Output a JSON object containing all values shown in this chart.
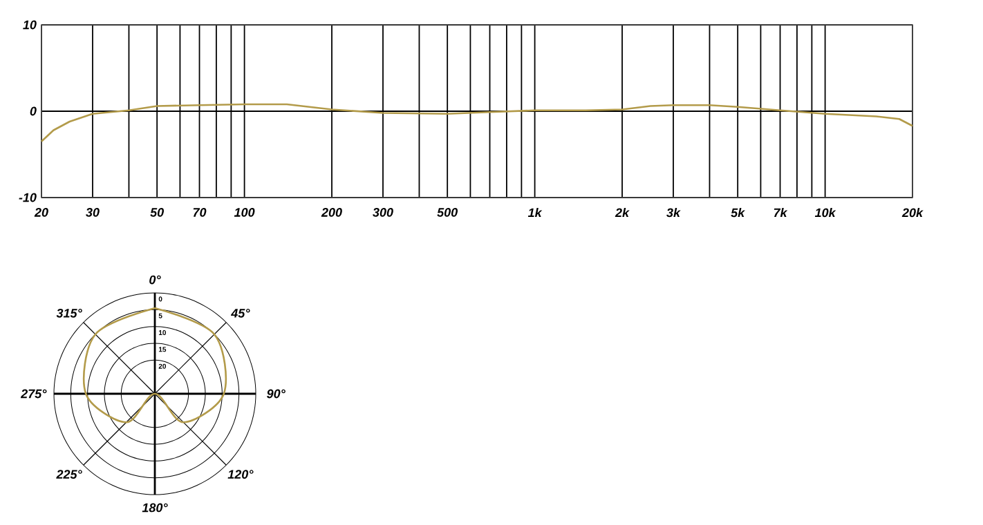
{
  "chart_data": [
    {
      "type": "line",
      "log": "x",
      "grid": true,
      "x": [
        20,
        22,
        25,
        30,
        40,
        50,
        70,
        100,
        140,
        200,
        300,
        500,
        700,
        1000,
        1500,
        2000,
        2500,
        3000,
        4000,
        5000,
        7000,
        10000,
        15000,
        18000,
        20000
      ],
      "series": [
        {
          "color": "#b39b4a",
          "values": [
            -3.5,
            -2.2,
            -1.2,
            -0.3,
            0.1,
            0.6,
            0.7,
            0.8,
            0.8,
            0.2,
            -0.2,
            -0.3,
            -0.1,
            0.1,
            0.1,
            0.2,
            0.6,
            0.7,
            0.7,
            0.5,
            0.1,
            -0.3,
            -0.6,
            -0.9,
            -1.7
          ]
        }
      ],
      "xlim": [
        20,
        20000
      ],
      "xticks": [
        20,
        30,
        {
          "value": 40,
          "label": null
        },
        50,
        {
          "value": 60,
          "label": null
        },
        70,
        {
          "value": 80,
          "label": null
        },
        {
          "value": 90,
          "label": null
        },
        100,
        200,
        300,
        {
          "value": 400,
          "label": null
        },
        500,
        {
          "value": 600,
          "label": null
        },
        {
          "value": 700,
          "label": null
        },
        {
          "value": 800,
          "label": null
        },
        {
          "value": 900,
          "label": null
        },
        {
          "value": 1000,
          "label": "1k"
        },
        {
          "value": 2000,
          "label": "2k"
        },
        {
          "value": 3000,
          "label": "3k"
        },
        {
          "value": 4000,
          "label": null
        },
        {
          "value": 5000,
          "label": "5k"
        },
        {
          "value": 6000,
          "label": null
        },
        {
          "value": 7000,
          "label": "7k"
        },
        {
          "value": 8000,
          "label": null
        },
        {
          "value": 9000,
          "label": null
        },
        {
          "value": 10000,
          "label": "10k"
        },
        {
          "value": 20000,
          "label": "20k"
        }
      ],
      "ylim": [
        -10,
        10
      ],
      "yticks": [
        -10,
        0,
        10
      ]
    },
    {
      "type": "radar",
      "grid": true,
      "categories": [
        "0°",
        "45°",
        "90°",
        "120°",
        "180°",
        "225°",
        "275°",
        "315°"
      ],
      "series": [
        {
          "color": "#b39b4a",
          "values": [
            4.5,
            5,
            9.5,
            18,
            30,
            18,
            9.5,
            5
          ]
        }
      ],
      "ylim": [
        30,
        0
      ],
      "yticks": [
        0,
        5,
        10,
        15,
        20
      ]
    }
  ]
}
